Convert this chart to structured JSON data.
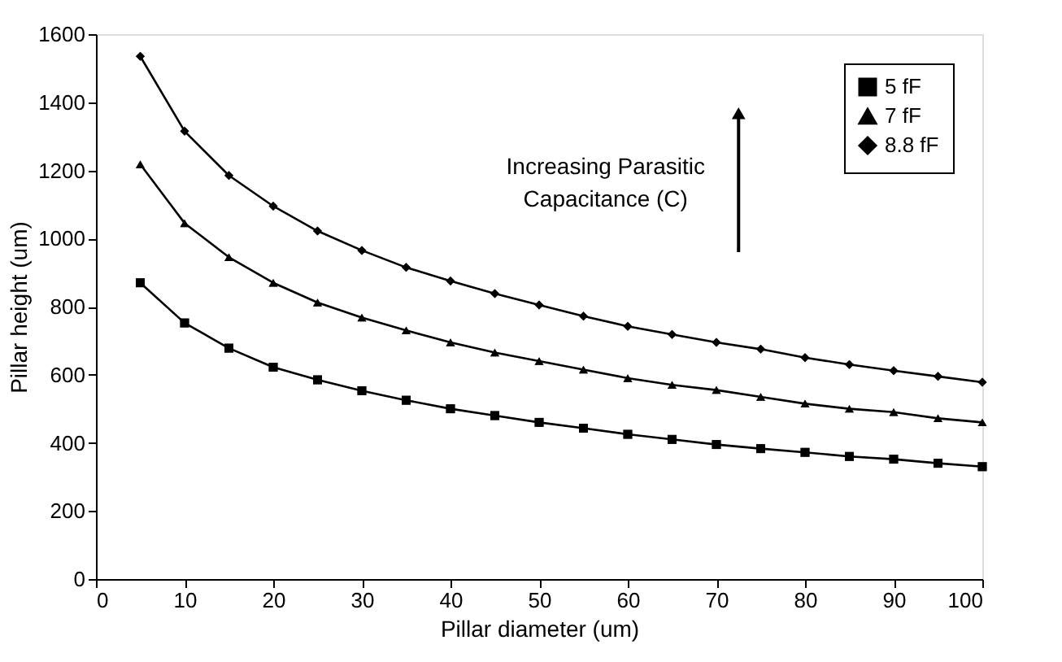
{
  "chart_data": {
    "type": "line",
    "xlabel": "Pillar diameter (um)",
    "ylabel": "Pillar height (um)",
    "x": [
      5,
      10,
      15,
      20,
      25,
      30,
      35,
      40,
      45,
      50,
      55,
      60,
      65,
      70,
      75,
      80,
      85,
      90,
      95,
      100
    ],
    "series": [
      {
        "name": "5 fF",
        "color": "#000000",
        "marker": "square",
        "values": [
          870,
          752,
          678,
          622,
          585,
          553,
          525,
          500,
          480,
          460,
          443,
          425,
          410,
          395,
          383,
          372,
          360,
          352,
          340,
          330
        ]
      },
      {
        "name": "7 fF",
        "color": "#000000",
        "marker": "triangle",
        "values": [
          1218,
          1045,
          945,
          870,
          812,
          768,
          730,
          695,
          665,
          640,
          615,
          590,
          570,
          555,
          535,
          515,
          500,
          490,
          472,
          460
        ]
      },
      {
        "name": "8.8 fF",
        "color": "#000000",
        "marker": "diamond",
        "values": [
          1535,
          1315,
          1185,
          1095,
          1022,
          965,
          915,
          875,
          838,
          805,
          772,
          742,
          718,
          695,
          675,
          650,
          630,
          612,
          595,
          578
        ]
      }
    ],
    "xlim": [
      0,
      100
    ],
    "xticks": [
      0,
      10,
      20,
      30,
      40,
      50,
      60,
      70,
      80,
      90,
      100
    ],
    "ylim": [
      0,
      1600
    ],
    "yticks": [
      0,
      200,
      400,
      600,
      800,
      1000,
      1200,
      1400,
      1600
    ],
    "grid": false,
    "legend": "top right",
    "line_style": "solid",
    "annotations": [
      "Increasing Parasitic Capacitance (C)"
    ]
  }
}
